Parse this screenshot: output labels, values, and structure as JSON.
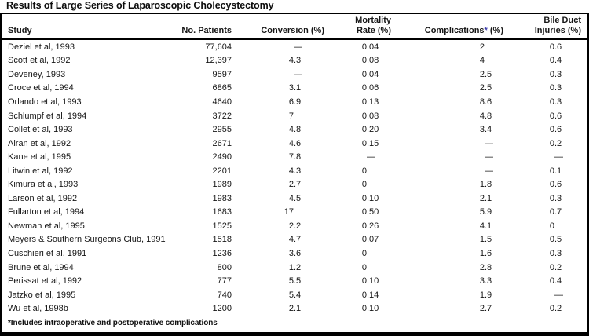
{
  "title": "Results of Large Series of Laparoscopic Cholecystectomy",
  "colors": {
    "asterisk_accent": "#3a3aad",
    "text": "#161616",
    "border": "#000000"
  },
  "table": {
    "na_symbol": "—",
    "columns": [
      {
        "id": "study",
        "label": "Study"
      },
      {
        "id": "patients",
        "label": "No. Patients"
      },
      {
        "id": "conversion",
        "label": "Conversion (%)"
      },
      {
        "id": "mortality",
        "line1": "Mortality",
        "line2": "Rate (%)"
      },
      {
        "id": "complications",
        "label_main": "Complications",
        "label_asterisk": "*",
        "label_suffix": " (%)"
      },
      {
        "id": "bile_duct",
        "line1": "Bile Duct",
        "line2": "Injuries (%)"
      }
    ],
    "rows": [
      {
        "study": "Deziel et al, 1993",
        "patients": "77,604",
        "conversion": "—",
        "mortality": "0.04",
        "complications": "2",
        "bile_duct": "0.6"
      },
      {
        "study": "Scott et al, 1992",
        "patients": "12,397",
        "conversion": "4.3",
        "mortality": "0.08",
        "complications": "4",
        "bile_duct": "0.4"
      },
      {
        "study": "Deveney, 1993",
        "patients": "9597",
        "conversion": "—",
        "mortality": "0.04",
        "complications": "2.5",
        "bile_duct": "0.3"
      },
      {
        "study": "Croce et al, 1994",
        "patients": "6865",
        "conversion": "3.1",
        "mortality": "0.06",
        "complications": "2.5",
        "bile_duct": "0.3"
      },
      {
        "study": "Orlando et al, 1993",
        "patients": "4640",
        "conversion": "6.9",
        "mortality": "0.13",
        "complications": "8.6",
        "bile_duct": "0.3"
      },
      {
        "study": "Schlumpf et al, 1994",
        "patients": "3722",
        "conversion": "7",
        "mortality": "0.08",
        "complications": "4.8",
        "bile_duct": "0.6"
      },
      {
        "study": "Collet et al, 1993",
        "patients": "2955",
        "conversion": "4.8",
        "mortality": "0.20",
        "complications": "3.4",
        "bile_duct": "0.6"
      },
      {
        "study": "Airan et al, 1992",
        "patients": "2671",
        "conversion": "4.6",
        "mortality": "0.15",
        "complications": "—",
        "bile_duct": "0.2"
      },
      {
        "study": "Kane et al, 1995",
        "patients": "2490",
        "conversion": "7.8",
        "mortality": "—",
        "complications": "—",
        "bile_duct": "—"
      },
      {
        "study": "Litwin et al, 1992",
        "patients": "2201",
        "conversion": "4.3",
        "mortality": "0",
        "complications": "—",
        "bile_duct": "0.1"
      },
      {
        "study": "Kimura et al, 1993",
        "patients": "1989",
        "conversion": "2.7",
        "mortality": "0",
        "complications": "1.8",
        "bile_duct": "0.6"
      },
      {
        "study": "Larson et al, 1992",
        "patients": "1983",
        "conversion": "4.5",
        "mortality": "0.10",
        "complications": "2.1",
        "bile_duct": "0.3"
      },
      {
        "study": "Fullarton et al, 1994",
        "patients": "1683",
        "conversion": "17",
        "mortality": "0.50",
        "complications": "5.9",
        "bile_duct": "0.7"
      },
      {
        "study": "Newman et al, 1995",
        "patients": "1525",
        "conversion": "2.2",
        "mortality": "0.26",
        "complications": "4.1",
        "bile_duct": "0"
      },
      {
        "study": "Meyers & Southern Surgeons Club, 1991",
        "patients": "1518",
        "conversion": "4.7",
        "mortality": "0.07",
        "complications": "1.5",
        "bile_duct": "0.5"
      },
      {
        "study": "Cuschieri et al, 1991",
        "patients": "1236",
        "conversion": "3.6",
        "mortality": "0",
        "complications": "1.6",
        "bile_duct": "0.3"
      },
      {
        "study": "Brune et al, 1994",
        "patients": "800",
        "conversion": "1.2",
        "mortality": "0",
        "complications": "2.8",
        "bile_duct": "0.2"
      },
      {
        "study": "Perissat et al, 1992",
        "patients": "777",
        "conversion": "5.5",
        "mortality": "0.10",
        "complications": "3.3",
        "bile_duct": "0.4"
      },
      {
        "study": "Jatzko et al, 1995",
        "patients": "740",
        "conversion": "5.4",
        "mortality": "0.14",
        "complications": "1.9",
        "bile_duct": "—"
      },
      {
        "study": "Wu et al, 1998b",
        "patients": "1200",
        "conversion": "2.1",
        "mortality": "0.10",
        "complications": "2.7",
        "bile_duct": "0.2"
      }
    ]
  },
  "footnote": "*Includes intraoperative and postoperative complications"
}
